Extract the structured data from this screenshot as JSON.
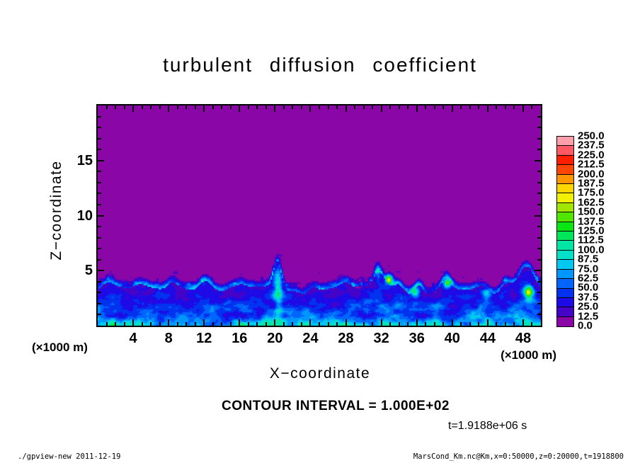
{
  "title": "turbulent diffusion coefficient",
  "axes": {
    "x": {
      "label": "X−coordinate",
      "units": "(×1000 m)",
      "min": 0,
      "max": 50,
      "major_ticks": [
        4,
        8,
        12,
        16,
        20,
        24,
        28,
        32,
        36,
        40,
        44,
        48
      ],
      "minor_step": 1
    },
    "y": {
      "label": "Z−coordinate",
      "units": "(×1000 m)",
      "min": 0,
      "max": 20,
      "major_ticks": [
        5,
        10,
        15
      ],
      "minor_step": 1
    }
  },
  "colorbar": {
    "tick_labels_top_to_bottom": [
      "250.0",
      "237.5",
      "225.0",
      "212.5",
      "200.0",
      "187.5",
      "175.0",
      "162.5",
      "150.0",
      "137.5",
      "125.0",
      "112.5",
      "100.0",
      "87.5",
      "75.0",
      "62.5",
      "50.0",
      "37.5",
      "25.0",
      "12.5",
      "0.0"
    ],
    "colors_bottom_to_top": [
      "#8A06A6",
      "#4603C8",
      "#1E0AE6",
      "#0032F0",
      "#0064FF",
      "#0096FF",
      "#00C8F0",
      "#00E1C8",
      "#00E6A5",
      "#00E65A",
      "#0AE614",
      "#50E600",
      "#A0E600",
      "#F0F000",
      "#FFD700",
      "#FF9600",
      "#FF4600",
      "#FF1E00",
      "#FF5A64",
      "#FFA0AA"
    ],
    "level_min": 0.0,
    "level_max": 250.0,
    "level_step": 12.5
  },
  "annotations": {
    "contour": "CONTOUR INTERVAL = 1.000E+02",
    "time": "t=1.9188e+06 s"
  },
  "footer": {
    "left": "./gpview-new  2011-12-19",
    "right": "MarsCond_Km.nc@Km,x=0:50000,z=0:20000,t=1918800"
  },
  "chart_data": {
    "type": "heatmap",
    "title": "turbulent diffusion coefficient",
    "xlabel": "X-coordinate (x1000 m)",
    "ylabel": "Z-coordinate (x1000 m)",
    "x_range": [
      0,
      50
    ],
    "z_range": [
      0,
      20
    ],
    "value_levels": {
      "min": 0.0,
      "max": 250.0,
      "step": 12.5
    },
    "contour_interval": "1.000E+02",
    "time_seconds": 1918800,
    "legend_position": "right-colorbar",
    "grid": false,
    "description": "Filled tone plot: nearly the whole domain above z~4-5 is in the lowest bin 0-12.5 (purple). A turbulent boundary layer below z~4 holds values ~12.5-100 (indigo to blue to cyan), brightest (cyan, ~75-100) near the surface. Detached blue specks float between z~3.5-6 around x~26-42. Updraft plumes near x~20, 31-33, 39 and 48 reach z~5.5; small intense cores ~100-160 sit near (33,4.3), (39.5,3.9) and (48.6,3.1).",
    "field_model": {
      "seed": 7,
      "base_layer_height": 2.3,
      "layer_height_amplitude": 1.6,
      "layer_height_freq": 0.25,
      "plumes_x_dh_sigma": [
        [
          1.2,
          1.0,
          0.8
        ],
        [
          5.0,
          0.5,
          0.9
        ],
        [
          8.5,
          0.6,
          0.7
        ],
        [
          12.2,
          0.8,
          0.6
        ],
        [
          16.0,
          0.5,
          0.7
        ],
        [
          20.3,
          2.5,
          0.45
        ],
        [
          24.5,
          0.6,
          0.7
        ],
        [
          28.0,
          0.5,
          0.6
        ],
        [
          31.8,
          1.4,
          0.7
        ],
        [
          34.0,
          0.6,
          0.5
        ],
        [
          36.2,
          0.8,
          0.5
        ],
        [
          39.3,
          1.2,
          0.5
        ],
        [
          43.5,
          0.7,
          0.7
        ],
        [
          46.0,
          0.8,
          0.6
        ],
        [
          48.4,
          2.3,
          0.9
        ]
      ],
      "cores_x_z_amp_sx_sz": [
        [
          32.9,
          4.25,
          140,
          0.3,
          0.3
        ],
        [
          35.8,
          3.05,
          90,
          0.35,
          0.3
        ],
        [
          39.5,
          3.9,
          110,
          0.3,
          0.3
        ],
        [
          43.9,
          2.9,
          70,
          0.4,
          0.35
        ],
        [
          48.6,
          3.1,
          140,
          0.35,
          0.4
        ],
        [
          20.4,
          3.3,
          55,
          0.3,
          1.6
        ],
        [
          31.6,
          5.0,
          60,
          0.25,
          0.5
        ]
      ]
    }
  }
}
